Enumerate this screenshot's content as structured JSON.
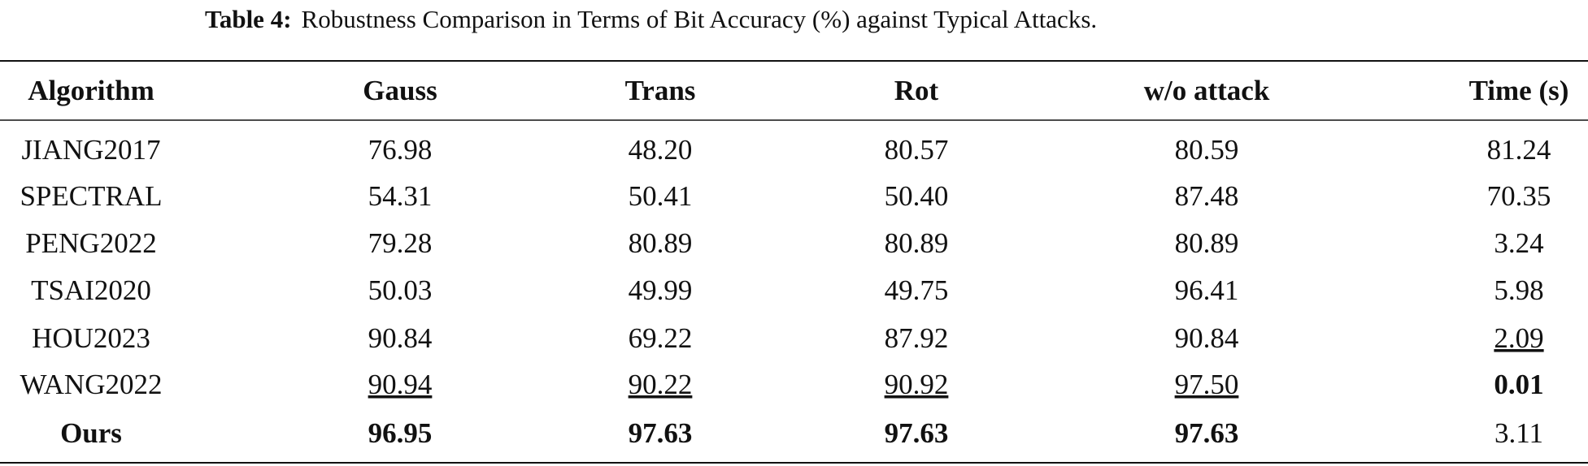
{
  "caption": {
    "label": "Table 4:",
    "text": "Robustness Comparison in Terms of Bit Accuracy (%) against Typical Attacks."
  },
  "table": {
    "header": [
      "Algorithm",
      "Gauss",
      "Trans",
      "Rot",
      "w/o attack",
      "Time (s)"
    ],
    "rows": [
      [
        "JIANG2017",
        "76.98",
        "48.20",
        "80.57",
        "80.59",
        "81.24"
      ],
      [
        "SPECTRAL",
        "54.31",
        "50.41",
        "50.40",
        "87.48",
        "70.35"
      ],
      [
        "PENG2022",
        "79.28",
        "80.89",
        "80.89",
        "80.89",
        "3.24"
      ],
      [
        "TSAI2020",
        "50.03",
        "49.99",
        "49.75",
        "96.41",
        "5.98"
      ],
      [
        "HOU2023",
        "90.84",
        "69.22",
        "87.92",
        "90.84",
        "2.09"
      ],
      [
        "WANG2022",
        "90.94",
        "90.22",
        "90.92",
        "97.50",
        "0.01"
      ],
      [
        "Ours",
        "96.95",
        "97.63",
        "97.63",
        "97.63",
        "3.11"
      ]
    ]
  }
}
